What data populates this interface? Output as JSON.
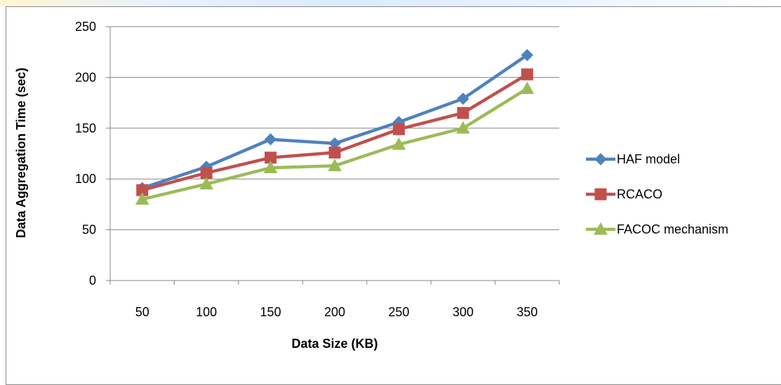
{
  "chart_data": {
    "type": "line",
    "title": "",
    "xlabel": "Data Size (KB)",
    "ylabel": "Data Aggregation Time (sec)",
    "categories": [
      "50",
      "100",
      "150",
      "200",
      "250",
      "300",
      "350"
    ],
    "ylim": [
      0,
      250
    ],
    "yticks": [
      0,
      50,
      100,
      150,
      200,
      250
    ],
    "grid": "horizontal",
    "legend_position": "right",
    "series": [
      {
        "name": "HAF model",
        "color": "#4f81bd",
        "marker": "diamond",
        "values": [
          91,
          112,
          139,
          135,
          156,
          179,
          222
        ]
      },
      {
        "name": "RCACO",
        "color": "#c0504d",
        "marker": "square",
        "values": [
          89,
          106,
          121,
          126,
          149,
          165,
          203
        ]
      },
      {
        "name": "FACOC mechanism",
        "color": "#9bbb59",
        "marker": "triangle",
        "values": [
          80,
          95,
          111,
          113,
          134,
          150,
          189
        ]
      }
    ]
  }
}
